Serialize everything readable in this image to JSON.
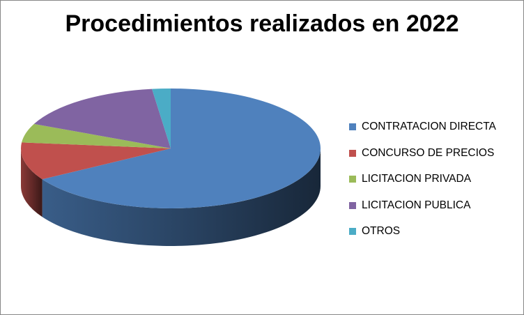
{
  "chart_data": {
    "type": "pie",
    "title": "Procedimientos realizados en 2022",
    "categories": [
      "CONTRATACION DIRECTA",
      "CONCURSO DE PRECIOS",
      "LICITACION PRIVADA",
      "LICITACION PUBLICA",
      "OTROS"
    ],
    "values": [
      66.4,
      10.2,
      5.1,
      16.3,
      2.0
    ],
    "colors": [
      "#4F81BD",
      "#C0504D",
      "#9BBB59",
      "#8064A2",
      "#4BACC6"
    ],
    "style": "3d",
    "legend_position": "right"
  }
}
